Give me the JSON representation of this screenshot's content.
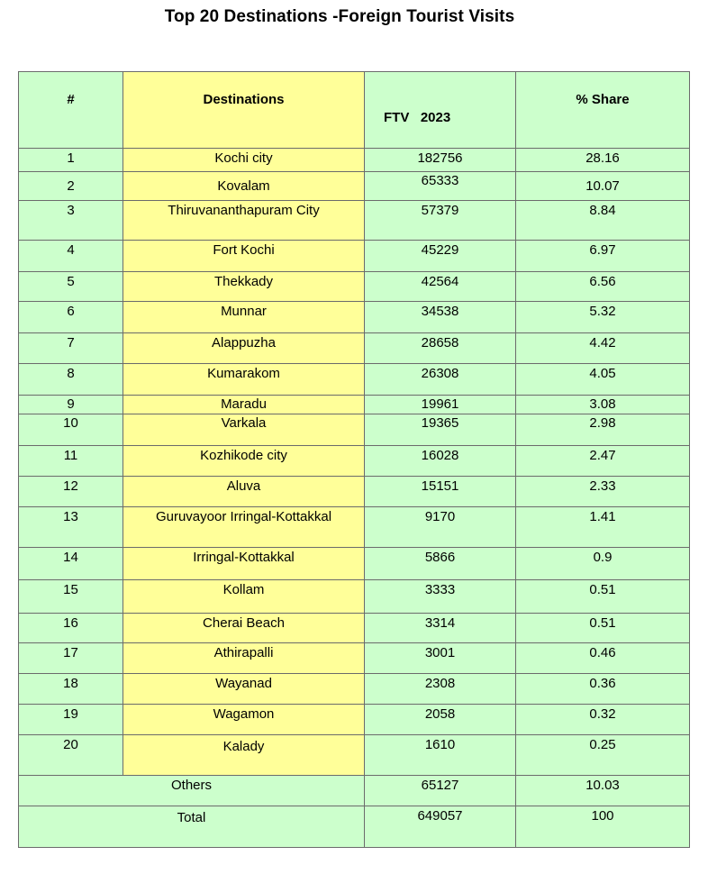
{
  "title": "Top 20 Destinations -Foreign Tourist Visits",
  "headers": {
    "num": "#",
    "destination": "Destinations",
    "ftv": "FTV   2023",
    "share": "% Share"
  },
  "rows": [
    {
      "num": "1",
      "destination": "Kochi city",
      "ftv": "182756",
      "share": "28.16"
    },
    {
      "num": "2",
      "destination": "Kovalam",
      "ftv": "65333",
      "share": "10.07"
    },
    {
      "num": "3",
      "destination": "Thiruvananthapuram City",
      "ftv": "57379",
      "share": "8.84"
    },
    {
      "num": "4",
      "destination": "Fort Kochi",
      "ftv": "45229",
      "share": "6.97"
    },
    {
      "num": "5",
      "destination": "Thekkady",
      "ftv": "42564",
      "share": "6.56"
    },
    {
      "num": "6",
      "destination": "Munnar",
      "ftv": "34538",
      "share": "5.32"
    },
    {
      "num": "7",
      "destination": "Alappuzha",
      "ftv": "28658",
      "share": "4.42"
    },
    {
      "num": "8",
      "destination": "Kumarakom",
      "ftv": "26308",
      "share": "4.05"
    },
    {
      "num": "9",
      "destination": "Maradu",
      "ftv": "19961",
      "share": "3.08"
    },
    {
      "num": "10",
      "destination": "Varkala",
      "ftv": "19365",
      "share": "2.98"
    },
    {
      "num": "11",
      "destination": "Kozhikode city",
      "ftv": "16028",
      "share": "2.47"
    },
    {
      "num": "12",
      "destination": "Aluva",
      "ftv": "15151",
      "share": "2.33"
    },
    {
      "num": "13",
      "destination": "Guruvayoor Irringal-Kottakkal",
      "ftv": "9170",
      "share": "1.41"
    },
    {
      "num": "14",
      "destination": "Irringal-Kottakkal",
      "ftv": "5866",
      "share": "0.9"
    },
    {
      "num": "15",
      "destination": "Kollam",
      "ftv": "3333",
      "share": "0.51"
    },
    {
      "num": "16",
      "destination": "Cherai Beach",
      "ftv": "3314",
      "share": "0.51"
    },
    {
      "num": "17",
      "destination": "Athirapalli",
      "ftv": "3001",
      "share": "0.46"
    },
    {
      "num": "18",
      "destination": "Wayanad",
      "ftv": "2308",
      "share": "0.36"
    },
    {
      "num": "19",
      "destination": "Wagamon",
      "ftv": "2058",
      "share": "0.32"
    },
    {
      "num": "20",
      "destination": "Kalady",
      "ftv": "1610",
      "share": "0.25"
    }
  ],
  "others": {
    "label": "Others",
    "ftv": "65127",
    "share": "10.03"
  },
  "total": {
    "label": "Total",
    "ftv": "649057",
    "share": "100"
  },
  "colors": {
    "green_fill": "#ccffcc",
    "yellow_fill": "#ffff99",
    "border": "#6b6b6b"
  }
}
